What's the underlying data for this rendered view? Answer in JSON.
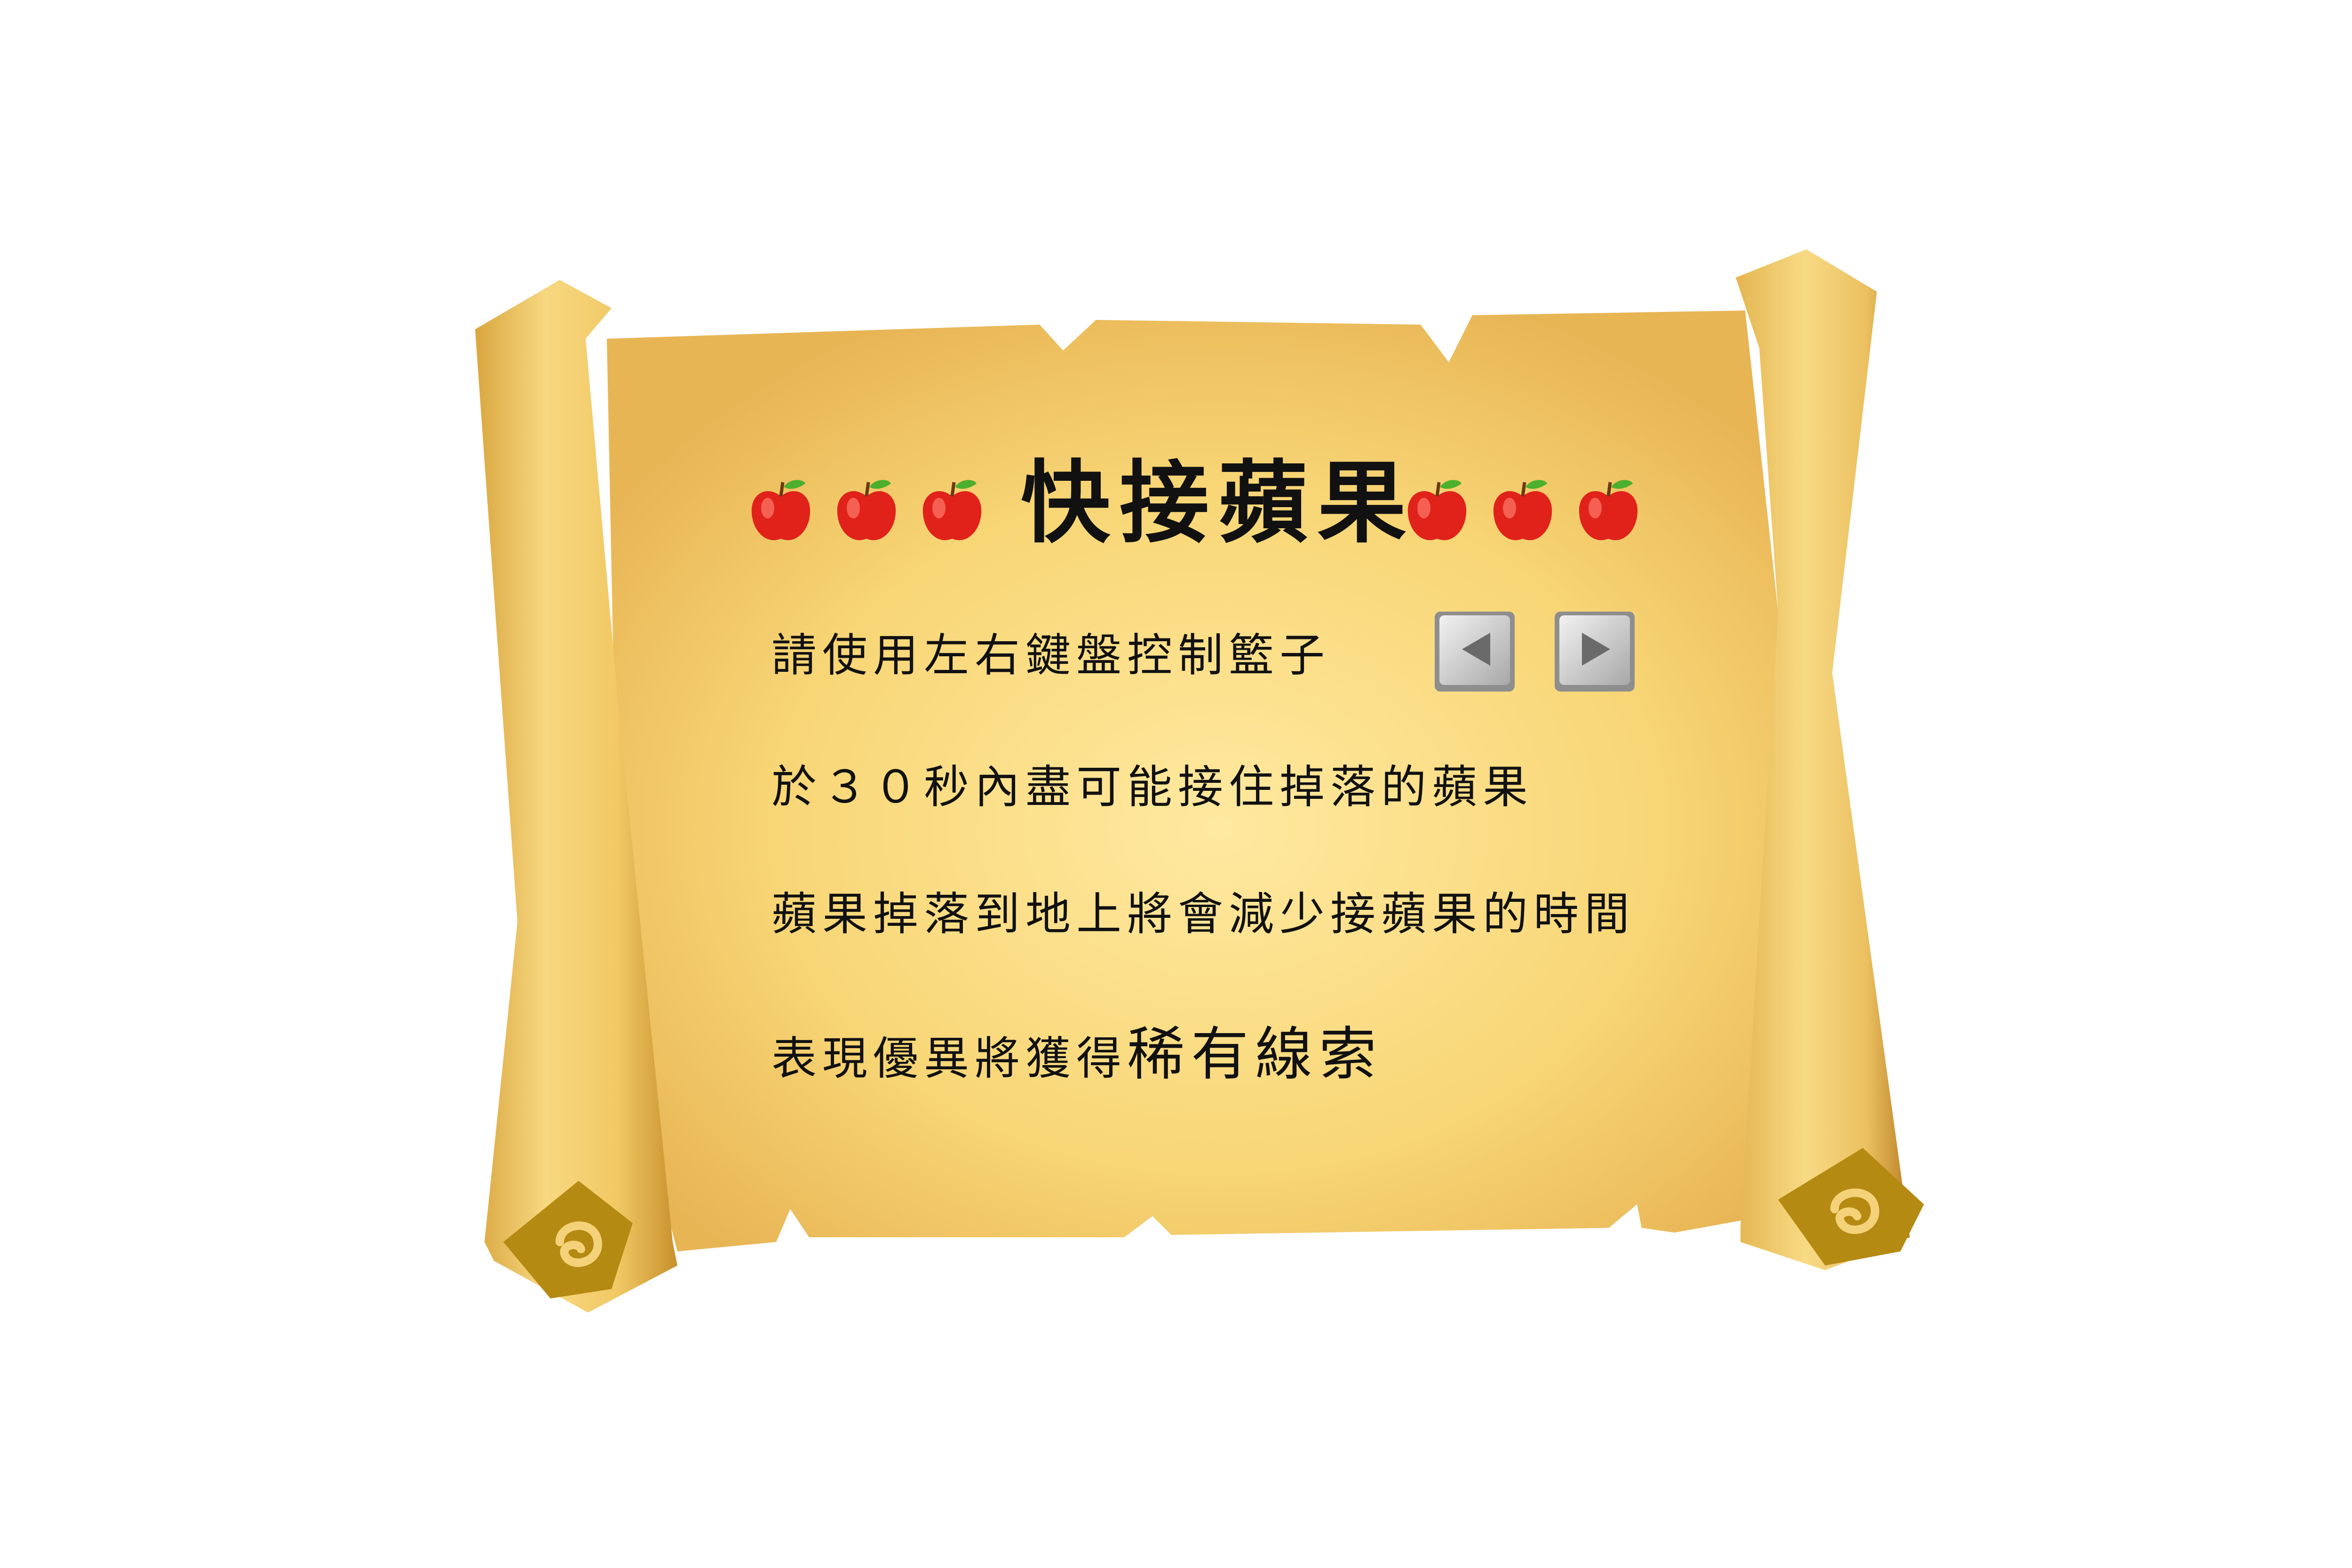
{
  "title": "快接蘋果",
  "instructions": {
    "line1": "請使用左右鍵盤控制籃子",
    "line2": "於３０秒內盡可能接住掉落的蘋果",
    "line3": "蘋果掉落到地上將會減少接蘋果的時間",
    "line4_prefix": "表現優異將獲得",
    "line4_highlight": "稀有線索"
  },
  "icons": {
    "apple": "apple-icon",
    "left_key": "left-arrow-key-icon",
    "right_key": "right-arrow-key-icon",
    "scroll_swirl": "spiral-icon"
  },
  "colors": {
    "parchment_center": "#FCE08A",
    "parchment_edge": "#E9B754",
    "roll_light": "#F5D27A",
    "roll_dark": "#C7922E",
    "swirl": "#B8860B",
    "apple_red": "#E0221B",
    "leaf_green": "#4CAF2E",
    "text": "#111111"
  }
}
